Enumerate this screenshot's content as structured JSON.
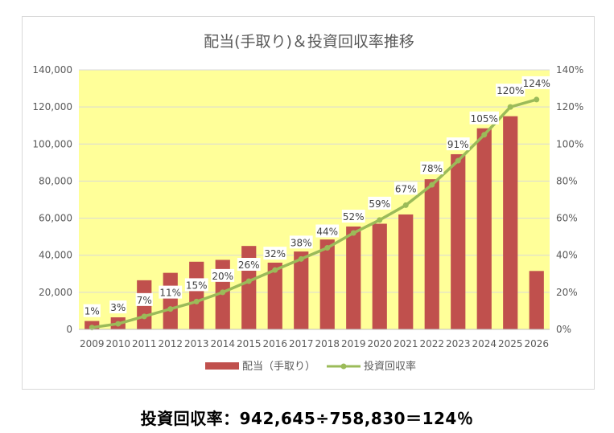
{
  "chart_data": {
    "type": "bar+line",
    "title": "配当(手取り)＆投資回収率推移",
    "categories": [
      "2009",
      "2010",
      "2011",
      "2012",
      "2013",
      "2014",
      "2015",
      "2016",
      "2017",
      "2018",
      "2019",
      "2020",
      "2021",
      "2022",
      "2023",
      "2024",
      "2025",
      "2026"
    ],
    "series": [
      {
        "name": "配当（手取り）",
        "type": "bar",
        "axis": "left",
        "color": "#c0504d",
        "values": [
          4500,
          6500,
          26500,
          30500,
          36500,
          37500,
          45000,
          36000,
          42000,
          48500,
          55500,
          57000,
          62000,
          81000,
          94500,
          108500,
          115000,
          31500
        ]
      },
      {
        "name": "投資回収率",
        "type": "line",
        "axis": "right",
        "color": "#9bbb59",
        "values": [
          1,
          3,
          7,
          11,
          15,
          20,
          26,
          32,
          38,
          44,
          52,
          59,
          67,
          78,
          91,
          105,
          120,
          124
        ],
        "labels": [
          "1%",
          "3%",
          "7%",
          "11%",
          "15%",
          "20%",
          "26%",
          "32%",
          "38%",
          "44%",
          "52%",
          "59%",
          "67%",
          "78%",
          "91%",
          "105%",
          "120%",
          "124%"
        ]
      }
    ],
    "y_left": {
      "ylim": [
        0,
        140000
      ],
      "ticks": [
        "0",
        "20,000",
        "40,000",
        "60,000",
        "80,000",
        "100,000",
        "120,000",
        "140,000"
      ]
    },
    "y_right": {
      "ylim": [
        0,
        140
      ],
      "ticks": [
        "0%",
        "20%",
        "40%",
        "60%",
        "80%",
        "100%",
        "120%",
        "140%"
      ]
    },
    "grid": true,
    "plot_background": "#ffff99",
    "legend": "bottom"
  },
  "formula_text": "投資回収率：942,645÷758,830＝124％"
}
